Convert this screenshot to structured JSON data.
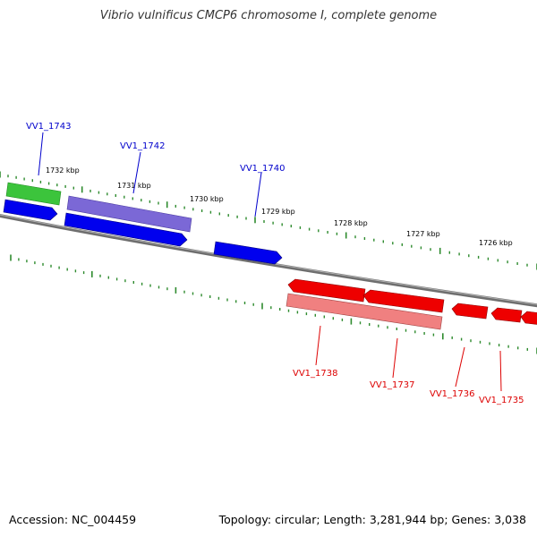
{
  "title": "Vibrio vulnificus CMCP6 chromosome I, complete genome",
  "accession": {
    "label": "Accession:",
    "value": "NC_004459"
  },
  "summary": {
    "topology_label": "Topology:",
    "topology": "circular",
    "length_label": "Length:",
    "length": "3,281,944 bp",
    "genes_label": "Genes:",
    "genes": "3,038"
  },
  "colors": {
    "backbone": "#808080",
    "tick": "#2e8b2e",
    "forward_gene": "#0000ee",
    "reverse_gene": "#ee0000",
    "cds_green": "#3cc43c",
    "cds_purple": "#7b68d6",
    "cds_pink": "#f08080",
    "forward_label": "#0000cc",
    "reverse_label": "#dd0000"
  },
  "scale_labels": [
    "1732 kbp",
    "1731 kbp",
    "1730 kbp",
    "1729 kbp",
    "1728 kbp",
    "1727 kbp",
    "1726 kbp"
  ],
  "gene_labels": {
    "forward": [
      "VV1_1743",
      "VV1_1742",
      "VV1_1740"
    ],
    "reverse": [
      "VV1_1738",
      "VV1_1737",
      "VV1_1736",
      "VV1_1735"
    ]
  }
}
